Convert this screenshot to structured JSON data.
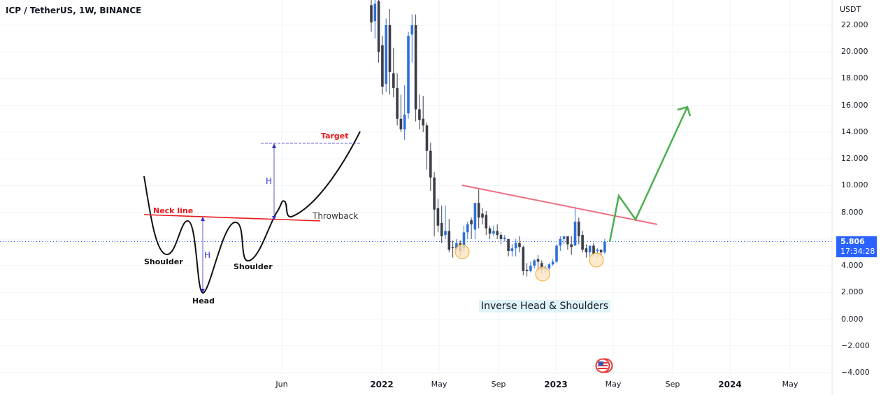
{
  "header": {
    "symbol_title": "ICP / TetherUS, 1W, BINANCE"
  },
  "price_axis": {
    "unit": "USDT",
    "ticks": [
      "22.000",
      "20.000",
      "18.000",
      "16.000",
      "14.000",
      "12.000",
      "10.000",
      "8.000",
      "4.000",
      "2.000",
      "0.000",
      "−2.000",
      "−4.000"
    ],
    "last_price": "5.806",
    "countdown": "17:34:28",
    "badge_color": "#2962ff"
  },
  "time_axis": {
    "ticks": [
      {
        "label": "Jun",
        "major": false
      },
      {
        "label": "2022",
        "major": true
      },
      {
        "label": "May",
        "major": false
      },
      {
        "label": "Sep",
        "major": false
      },
      {
        "label": "2023",
        "major": true
      },
      {
        "label": "May",
        "major": false
      },
      {
        "label": "Sep",
        "major": false
      },
      {
        "label": "2024",
        "major": true
      },
      {
        "label": "May",
        "major": false
      }
    ]
  },
  "diagram": {
    "neck_line_label": "Neck line",
    "target_label": "Target",
    "throwback_label": "Throwback",
    "height_label_1": "H",
    "height_label_2": "H",
    "left_shoulder_label": "Shoulder",
    "right_shoulder_label": "Shoulder",
    "head_label": "Head"
  },
  "annotations": {
    "pattern_caption": "Inverse Head & Shoulders",
    "flag_icon": "us-flag-icon"
  },
  "colors": {
    "up_candle": "#2f6fdc",
    "down_candle": "#3b3d47",
    "neckline_chart": "#ef6f82",
    "projection_arrow": "#4caf50",
    "highlight_circle": "#f5a623",
    "diagram_neckline": "#e8191c",
    "diagram_arrow": "#3333cc"
  },
  "chart_data": {
    "type": "candlestick",
    "title": "ICP / TetherUS, 1W, BINANCE",
    "xlabel": "",
    "ylabel": "USDT",
    "ylim": [
      -4.5,
      23
    ],
    "grid": true,
    "x_ticks": [
      "Jun",
      "2022",
      "May",
      "Sep",
      "2023",
      "May",
      "Sep",
      "2024",
      "May"
    ],
    "y_ticks": [
      22,
      20,
      18,
      16,
      14,
      12,
      10,
      8,
      6,
      4,
      2,
      0,
      -2,
      -4
    ],
    "last_price": 5.806,
    "pattern": "Inverse Head & Shoulders",
    "neckline": {
      "start": {
        "x": "Jun 2022",
        "y": 10.0
      },
      "end": {
        "x": "Aug 2023",
        "y": 7.0
      }
    },
    "projection_path_y": [
      5.8,
      9.3,
      7.5,
      16.0
    ],
    "highlighted_lows": [
      {
        "label": "left shoulder",
        "y": 5.0
      },
      {
        "label": "head",
        "y": 3.3
      },
      {
        "label": "right shoulder",
        "y": 4.6
      }
    ],
    "candles": [
      {
        "o": 23.5,
        "h": 24.5,
        "c": 22.2,
        "l": 21.5,
        "dir": "down"
      },
      {
        "o": 22.3,
        "h": 24.0,
        "c": 23.6,
        "l": 21.0,
        "dir": "up"
      },
      {
        "o": 23.8,
        "h": 24.0,
        "c": 20.0,
        "l": 19.2,
        "dir": "down"
      },
      {
        "o": 20.5,
        "h": 21.2,
        "c": 17.4,
        "l": 16.8,
        "dir": "down"
      },
      {
        "o": 17.6,
        "h": 22.5,
        "c": 22.0,
        "l": 17.0,
        "dir": "up"
      },
      {
        "o": 22.0,
        "h": 23.2,
        "c": 18.5,
        "l": 16.8,
        "dir": "down"
      },
      {
        "o": 18.4,
        "h": 20.3,
        "c": 17.3,
        "l": 16.6,
        "dir": "down"
      },
      {
        "o": 17.3,
        "h": 18.4,
        "c": 15.0,
        "l": 14.5,
        "dir": "down"
      },
      {
        "o": 15.0,
        "h": 16.8,
        "c": 14.2,
        "l": 14.0,
        "dir": "down"
      },
      {
        "o": 14.2,
        "h": 17.5,
        "c": 15.3,
        "l": 13.4,
        "dir": "up"
      },
      {
        "o": 15.4,
        "h": 21.5,
        "c": 21.2,
        "l": 15.0,
        "dir": "up"
      },
      {
        "o": 21.3,
        "h": 22.8,
        "c": 22.0,
        "l": 19.2,
        "dir": "up"
      },
      {
        "o": 22.0,
        "h": 22.8,
        "c": 15.7,
        "l": 14.8,
        "dir": "down"
      },
      {
        "o": 15.7,
        "h": 16.8,
        "c": 14.9,
        "l": 14.2,
        "dir": "down"
      },
      {
        "o": 15.0,
        "h": 16.7,
        "c": 14.5,
        "l": 14.0,
        "dir": "down"
      },
      {
        "o": 14.5,
        "h": 14.7,
        "c": 12.6,
        "l": 11.2,
        "dir": "down"
      },
      {
        "o": 12.6,
        "h": 13.2,
        "c": 10.6,
        "l": 9.6,
        "dir": "down"
      },
      {
        "o": 10.6,
        "h": 11.0,
        "c": 8.2,
        "l": 6.2,
        "dir": "down"
      },
      {
        "o": 8.3,
        "h": 9.0,
        "c": 7.0,
        "l": 6.5,
        "dir": "down"
      },
      {
        "o": 7.2,
        "h": 8.5,
        "c": 6.2,
        "l": 5.7,
        "dir": "down"
      },
      {
        "o": 6.3,
        "h": 8.5,
        "c": 6.6,
        "l": 6.0,
        "dir": "up"
      },
      {
        "o": 6.6,
        "h": 7.5,
        "c": 5.2,
        "l": 5.0,
        "dir": "down"
      },
      {
        "o": 5.4,
        "h": 5.9,
        "c": 5.4,
        "l": 4.6,
        "dir": "down"
      },
      {
        "o": 5.3,
        "h": 6.0,
        "c": 5.7,
        "l": 5.0,
        "dir": "up"
      },
      {
        "o": 5.7,
        "h": 5.9,
        "c": 5.1,
        "l": 4.7,
        "dir": "down"
      },
      {
        "o": 5.3,
        "h": 7.0,
        "c": 6.5,
        "l": 5.0,
        "dir": "up"
      },
      {
        "o": 6.5,
        "h": 7.3,
        "c": 7.1,
        "l": 6.0,
        "dir": "up"
      },
      {
        "o": 7.1,
        "h": 7.6,
        "c": 7.4,
        "l": 6.0,
        "dir": "down"
      },
      {
        "o": 6.7,
        "h": 8.3,
        "c": 8.7,
        "l": 6.0,
        "dir": "up"
      },
      {
        "o": 8.7,
        "h": 9.7,
        "c": 7.6,
        "l": 6.8,
        "dir": "down"
      },
      {
        "o": 7.6,
        "h": 8.3,
        "c": 7.9,
        "l": 7.1,
        "dir": "down"
      },
      {
        "o": 7.8,
        "h": 8.1,
        "c": 6.8,
        "l": 6.3,
        "dir": "down"
      },
      {
        "o": 6.8,
        "h": 7.0,
        "c": 6.4,
        "l": 6.0,
        "dir": "down"
      },
      {
        "o": 6.4,
        "h": 7.0,
        "c": 6.6,
        "l": 6.2,
        "dir": "up"
      },
      {
        "o": 6.6,
        "h": 7.1,
        "c": 6.3,
        "l": 6.0,
        "dir": "down"
      },
      {
        "o": 6.3,
        "h": 6.5,
        "c": 6.0,
        "l": 5.6,
        "dir": "down"
      },
      {
        "o": 6.1,
        "h": 6.3,
        "c": 6.0,
        "l": 5.8,
        "dir": "up"
      },
      {
        "o": 6.0,
        "h": 6.0,
        "c": 5.1,
        "l": 4.7,
        "dir": "down"
      },
      {
        "o": 5.1,
        "h": 5.6,
        "c": 5.3,
        "l": 4.7,
        "dir": "up"
      },
      {
        "o": 5.3,
        "h": 6.0,
        "c": 5.7,
        "l": 4.7,
        "dir": "up"
      },
      {
        "o": 5.7,
        "h": 6.2,
        "c": 5.4,
        "l": 5.0,
        "dir": "down"
      },
      {
        "o": 5.4,
        "h": 5.5,
        "c": 3.6,
        "l": 3.3,
        "dir": "down"
      },
      {
        "o": 3.7,
        "h": 4.2,
        "c": 3.6,
        "l": 3.2,
        "dir": "down"
      },
      {
        "o": 3.6,
        "h": 4.3,
        "c": 4.0,
        "l": 3.5,
        "dir": "up"
      },
      {
        "o": 4.0,
        "h": 4.5,
        "c": 4.4,
        "l": 3.8,
        "dir": "up"
      },
      {
        "o": 4.5,
        "h": 4.8,
        "c": 4.3,
        "l": 3.6,
        "dir": "down"
      },
      {
        "o": 4.2,
        "h": 4.4,
        "c": 3.7,
        "l": 3.4,
        "dir": "down"
      },
      {
        "o": 3.8,
        "h": 4.0,
        "c": 3.8,
        "l": 3.5,
        "dir": "up"
      },
      {
        "o": 3.8,
        "h": 4.2,
        "c": 4.1,
        "l": 3.7,
        "dir": "up"
      },
      {
        "o": 4.1,
        "h": 4.5,
        "c": 4.3,
        "l": 4.0,
        "dir": "up"
      },
      {
        "o": 4.3,
        "h": 5.6,
        "c": 5.5,
        "l": 4.2,
        "dir": "up"
      },
      {
        "o": 5.5,
        "h": 6.2,
        "c": 6.0,
        "l": 5.1,
        "dir": "up"
      },
      {
        "o": 6.0,
        "h": 6.2,
        "c": 6.2,
        "l": 5.6,
        "dir": "up"
      },
      {
        "o": 6.2,
        "h": 6.2,
        "c": 5.6,
        "l": 5.2,
        "dir": "down"
      },
      {
        "o": 5.6,
        "h": 6.2,
        "c": 5.4,
        "l": 4.8,
        "dir": "down"
      },
      {
        "o": 5.5,
        "h": 8.4,
        "c": 7.3,
        "l": 5.5,
        "dir": "up"
      },
      {
        "o": 7.3,
        "h": 7.6,
        "c": 6.2,
        "l": 5.6,
        "dir": "down"
      },
      {
        "o": 6.3,
        "h": 6.6,
        "c": 5.2,
        "l": 5.0,
        "dir": "down"
      },
      {
        "o": 5.3,
        "h": 5.6,
        "c": 5.0,
        "l": 4.6,
        "dir": "down"
      },
      {
        "o": 5.0,
        "h": 5.4,
        "c": 5.5,
        "l": 4.7,
        "dir": "up"
      },
      {
        "o": 5.5,
        "h": 5.7,
        "c": 4.9,
        "l": 4.7,
        "dir": "down"
      },
      {
        "o": 5.1,
        "h": 5.3,
        "c": 5.2,
        "l": 4.6,
        "dir": "up"
      },
      {
        "o": 5.2,
        "h": 5.2,
        "c": 5.0,
        "l": 4.7,
        "dir": "down"
      },
      {
        "o": 5.0,
        "h": 6.0,
        "c": 5.8,
        "l": 4.9,
        "dir": "up"
      }
    ]
  }
}
